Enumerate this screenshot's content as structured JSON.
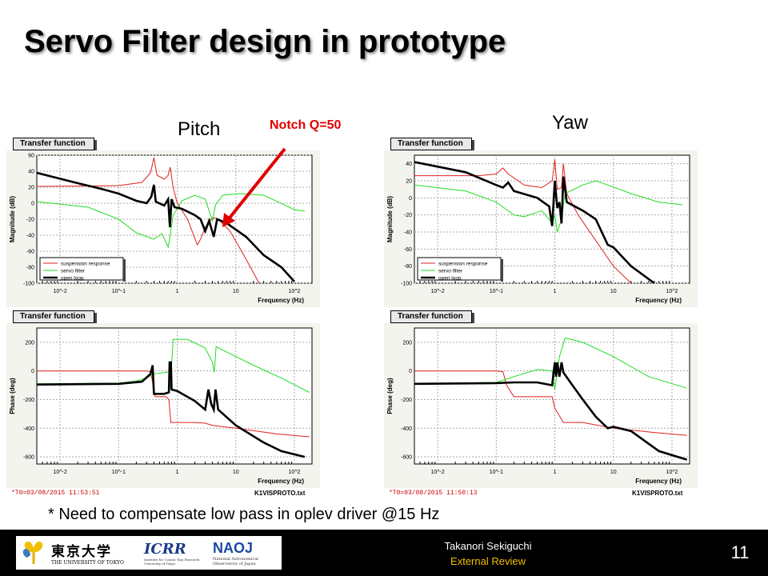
{
  "title": "Servo Filter design in prototype",
  "labels": {
    "pitch": "Pitch",
    "yaw": "Yaw",
    "notch": "Notch Q=50"
  },
  "panel_header": "Transfer function",
  "legend": [
    "suspension response",
    "servo filter",
    "open loop"
  ],
  "footer_notes": {
    "pitch_t0": "*T0=03/08/2015 11:53:51",
    "yaw_t0": "*T0=03/08/2015 11:50:13",
    "file": "K1VISPROTO.txt"
  },
  "note": "* Need to compensate low pass in oplev driver @15 Hz",
  "footer": {
    "presenter": "Takanori Sekiguchi",
    "event": "External Review",
    "page": "11",
    "logos": {
      "utokyo_kanji": "東京大学",
      "utokyo_en": "THE UNIVERSITY OF TOKYO",
      "icrr": "ICRR",
      "icrr_sub": "Institute for Cosmic Ray Research University of Tokyo",
      "naoj": "NAOJ",
      "naoj_sub": "National Astronomical Observatory of Japan"
    }
  },
  "colors": {
    "suspension": "#e02020",
    "servo": "#22dd22",
    "openloop": "#000000",
    "accent": "#f0c000"
  },
  "chart_data": [
    {
      "type": "line",
      "name": "pitch-magnitude",
      "title": "Transfer function",
      "xlabel": "Frequency (Hz)",
      "ylabel": "Magnitude (dB)",
      "xscale": "log",
      "xlim": [
        0.004,
        200
      ],
      "ylim": [
        -100,
        60
      ],
      "xticks": [
        "10^-2",
        "10^-1",
        "1",
        "10",
        "10^2"
      ],
      "yticks": [
        -100,
        -80,
        -60,
        -40,
        -20,
        0,
        20,
        40,
        60
      ],
      "legend": "bottom-left",
      "grid": true,
      "series": [
        {
          "name": "suspension response",
          "color": "#e02020",
          "points": [
            [
              0.004,
              21
            ],
            [
              0.1,
              22
            ],
            [
              0.25,
              26
            ],
            [
              0.35,
              38
            ],
            [
              0.4,
              57
            ],
            [
              0.45,
              35
            ],
            [
              0.6,
              30
            ],
            [
              0.7,
              35
            ],
            [
              0.76,
              45
            ],
            [
              0.85,
              20
            ],
            [
              1,
              0
            ],
            [
              1.5,
              -20
            ],
            [
              2.2,
              -52
            ],
            [
              2.5,
              -45
            ],
            [
              3,
              -30
            ],
            [
              4,
              -18
            ],
            [
              5,
              -20
            ],
            [
              8,
              -35
            ],
            [
              15,
              -70
            ],
            [
              25,
              -100
            ]
          ]
        },
        {
          "name": "servo filter",
          "color": "#22dd22",
          "points": [
            [
              0.004,
              2
            ],
            [
              0.03,
              -5
            ],
            [
              0.1,
              -20
            ],
            [
              0.2,
              -37
            ],
            [
              0.4,
              -45
            ],
            [
              0.55,
              -38
            ],
            [
              0.7,
              -55
            ],
            [
              0.76,
              -40
            ],
            [
              0.85,
              -15
            ],
            [
              1.2,
              3
            ],
            [
              2,
              10
            ],
            [
              3,
              5
            ],
            [
              4,
              -22
            ],
            [
              4.5,
              -2
            ],
            [
              6,
              10
            ],
            [
              12,
              12
            ],
            [
              30,
              10
            ],
            [
              100,
              -8
            ],
            [
              150,
              -10
            ]
          ]
        },
        {
          "name": "open loop",
          "color": "#000000",
          "points": [
            [
              0.004,
              38
            ],
            [
              0.02,
              25
            ],
            [
              0.05,
              18
            ],
            [
              0.1,
              12
            ],
            [
              0.2,
              3
            ],
            [
              0.3,
              0
            ],
            [
              0.36,
              8
            ],
            [
              0.4,
              23
            ],
            [
              0.43,
              2
            ],
            [
              0.6,
              -3
            ],
            [
              0.7,
              5
            ],
            [
              0.75,
              -30
            ],
            [
              0.8,
              5
            ],
            [
              0.9,
              -5
            ],
            [
              1.2,
              -7
            ],
            [
              2,
              -15
            ],
            [
              2.5,
              -20
            ],
            [
              3,
              -35
            ],
            [
              3.5,
              -22
            ],
            [
              4.2,
              -42
            ],
            [
              4.8,
              -20
            ],
            [
              7,
              -25
            ],
            [
              15,
              -42
            ],
            [
              30,
              -65
            ],
            [
              60,
              -80
            ],
            [
              100,
              -98
            ]
          ]
        }
      ]
    },
    {
      "type": "line",
      "name": "pitch-phase",
      "title": "Transfer function",
      "xlabel": "Frequency (Hz)",
      "ylabel": "Phase (deg)",
      "xscale": "log",
      "xlim": [
        0.004,
        200
      ],
      "ylim": [
        -650,
        300
      ],
      "xticks": [
        "10^-2",
        "10^-1",
        "1",
        "10",
        "10^2"
      ],
      "yticks": [
        -600,
        -400,
        -200,
        0,
        200
      ],
      "grid": true,
      "series": [
        {
          "name": "suspension response",
          "color": "#e02020",
          "points": [
            [
              0.004,
              0
            ],
            [
              0.3,
              0
            ],
            [
              0.35,
              -5
            ],
            [
              0.38,
              -80
            ],
            [
              0.42,
              -180
            ],
            [
              0.65,
              -180
            ],
            [
              0.72,
              -200
            ],
            [
              0.78,
              -360
            ],
            [
              2,
              -360
            ],
            [
              3,
              -365
            ],
            [
              4,
              -380
            ],
            [
              10,
              -400
            ],
            [
              50,
              -440
            ],
            [
              180,
              -460
            ]
          ]
        },
        {
          "name": "servo filter",
          "color": "#22dd22",
          "points": [
            [
              0.004,
              -90
            ],
            [
              0.1,
              -85
            ],
            [
              0.2,
              -70
            ],
            [
              0.3,
              -50
            ],
            [
              0.4,
              -20
            ],
            [
              0.65,
              -10
            ],
            [
              0.72,
              0
            ],
            [
              0.76,
              -120
            ],
            [
              0.85,
              220
            ],
            [
              1.5,
              220
            ],
            [
              3,
              160
            ],
            [
              4,
              60
            ],
            [
              4.3,
              -10
            ],
            [
              4.6,
              170
            ],
            [
              8,
              120
            ],
            [
              20,
              40
            ],
            [
              60,
              -50
            ],
            [
              180,
              -150
            ]
          ]
        },
        {
          "name": "open loop",
          "color": "#000000",
          "points": [
            [
              0.004,
              -95
            ],
            [
              0.1,
              -90
            ],
            [
              0.25,
              -75
            ],
            [
              0.35,
              -20
            ],
            [
              0.38,
              40
            ],
            [
              0.4,
              -160
            ],
            [
              0.6,
              -160
            ],
            [
              0.72,
              -150
            ],
            [
              0.74,
              60
            ],
            [
              0.78,
              60
            ],
            [
              0.8,
              -130
            ],
            [
              1,
              -140
            ],
            [
              2,
              -210
            ],
            [
              3,
              -270
            ],
            [
              3.4,
              -130
            ],
            [
              3.8,
              -230
            ],
            [
              4.2,
              -270
            ],
            [
              4.5,
              -130
            ],
            [
              5,
              -270
            ],
            [
              10,
              -380
            ],
            [
              30,
              -500
            ],
            [
              60,
              -560
            ],
            [
              150,
              -600
            ]
          ]
        }
      ]
    },
    {
      "type": "line",
      "name": "yaw-magnitude",
      "title": "Transfer function",
      "xlabel": "Frequency (Hz)",
      "ylabel": "Magnitude (dB)",
      "xscale": "log",
      "xlim": [
        0.004,
        200
      ],
      "ylim": [
        -100,
        50
      ],
      "xticks": [
        "10^-2",
        "10^-1",
        "1",
        "10",
        "10^2"
      ],
      "yticks": [
        -100,
        -80,
        -60,
        -40,
        -20,
        0,
        20,
        40
      ],
      "legend": "bottom-left",
      "grid": true,
      "series": [
        {
          "name": "suspension response",
          "color": "#e02020",
          "points": [
            [
              0.004,
              26
            ],
            [
              0.05,
              26
            ],
            [
              0.1,
              28
            ],
            [
              0.13,
              35
            ],
            [
              0.16,
              28
            ],
            [
              0.3,
              15
            ],
            [
              0.6,
              12
            ],
            [
              0.9,
              20
            ],
            [
              1.0,
              45
            ],
            [
              1.1,
              10
            ],
            [
              1.3,
              12
            ],
            [
              1.4,
              40
            ],
            [
              1.6,
              5
            ],
            [
              2.5,
              -20
            ],
            [
              5,
              -50
            ],
            [
              10,
              -80
            ],
            [
              20,
              -100
            ]
          ]
        },
        {
          "name": "servo filter",
          "color": "#22dd22",
          "points": [
            [
              0.004,
              15
            ],
            [
              0.03,
              8
            ],
            [
              0.1,
              -5
            ],
            [
              0.2,
              -20
            ],
            [
              0.3,
              -22
            ],
            [
              0.6,
              -15
            ],
            [
              0.9,
              -30
            ],
            [
              1.0,
              -20
            ],
            [
              1.1,
              -40
            ],
            [
              1.3,
              -25
            ],
            [
              1.5,
              5
            ],
            [
              3,
              15
            ],
            [
              5,
              20
            ],
            [
              8,
              15
            ],
            [
              20,
              5
            ],
            [
              60,
              -5
            ],
            [
              150,
              -8
            ]
          ]
        },
        {
          "name": "open loop",
          "color": "#000000",
          "points": [
            [
              0.004,
              42
            ],
            [
              0.03,
              30
            ],
            [
              0.1,
              15
            ],
            [
              0.13,
              12
            ],
            [
              0.16,
              18
            ],
            [
              0.2,
              8
            ],
            [
              0.5,
              0
            ],
            [
              0.8,
              -10
            ],
            [
              0.9,
              -33
            ],
            [
              1.0,
              20
            ],
            [
              1.1,
              -12
            ],
            [
              1.2,
              -5
            ],
            [
              1.3,
              -30
            ],
            [
              1.4,
              25
            ],
            [
              1.6,
              -5
            ],
            [
              3,
              -15
            ],
            [
              5,
              -25
            ],
            [
              8,
              -55
            ],
            [
              10,
              -58
            ],
            [
              20,
              -80
            ],
            [
              50,
              -100
            ]
          ]
        }
      ]
    },
    {
      "type": "line",
      "name": "yaw-phase",
      "title": "Transfer function",
      "xlabel": "Frequency (Hz)",
      "ylabel": "Phase (deg)",
      "xscale": "log",
      "xlim": [
        0.004,
        200
      ],
      "ylim": [
        -650,
        300
      ],
      "xticks": [
        "10^-2",
        "10^-1",
        "1",
        "10",
        "10^2"
      ],
      "yticks": [
        -600,
        -400,
        -200,
        0,
        200
      ],
      "grid": true,
      "series": [
        {
          "name": "suspension response",
          "color": "#e02020",
          "points": [
            [
              0.004,
              0
            ],
            [
              0.1,
              0
            ],
            [
              0.13,
              -5
            ],
            [
              0.15,
              -100
            ],
            [
              0.2,
              -180
            ],
            [
              0.9,
              -180
            ],
            [
              1.0,
              -260
            ],
            [
              1.4,
              -360
            ],
            [
              3,
              -360
            ],
            [
              10,
              -400
            ],
            [
              50,
              -430
            ],
            [
              180,
              -450
            ]
          ]
        },
        {
          "name": "servo filter",
          "color": "#22dd22",
          "points": [
            [
              0.004,
              -90
            ],
            [
              0.1,
              -80
            ],
            [
              0.2,
              -40
            ],
            [
              0.5,
              10
            ],
            [
              0.9,
              0
            ],
            [
              1.0,
              -130
            ],
            [
              1.2,
              100
            ],
            [
              1.5,
              230
            ],
            [
              3,
              200
            ],
            [
              10,
              100
            ],
            [
              40,
              -40
            ],
            [
              180,
              -120
            ]
          ]
        },
        {
          "name": "open loop",
          "color": "#000000",
          "points": [
            [
              0.004,
              -90
            ],
            [
              0.1,
              -85
            ],
            [
              0.2,
              -80
            ],
            [
              0.5,
              -80
            ],
            [
              0.9,
              -100
            ],
            [
              1.0,
              60
            ],
            [
              1.05,
              -40
            ],
            [
              1.1,
              60
            ],
            [
              1.2,
              -40
            ],
            [
              1.3,
              60
            ],
            [
              1.4,
              -10
            ],
            [
              2,
              -100
            ],
            [
              3,
              -200
            ],
            [
              5,
              -320
            ],
            [
              8,
              -400
            ],
            [
              10,
              -390
            ],
            [
              20,
              -420
            ],
            [
              60,
              -560
            ],
            [
              180,
              -620
            ]
          ]
        }
      ]
    }
  ]
}
